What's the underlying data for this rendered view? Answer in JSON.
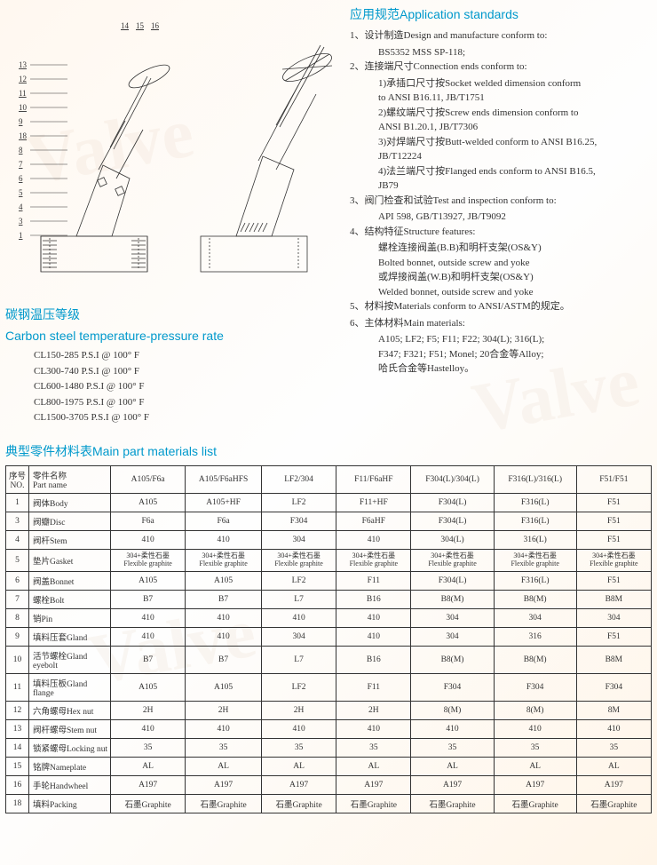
{
  "watermark_text": "Valve",
  "diagram": {
    "callout_numbers_left": [
      "13",
      "12",
      "11",
      "10",
      "9",
      "18",
      "8",
      "7",
      "6",
      "5",
      "4",
      "3",
      "1"
    ],
    "callout_numbers_top": [
      "14",
      "15",
      "16"
    ]
  },
  "standards": {
    "heading": "应用规范Application standards",
    "items": [
      {
        "num": "1、",
        "label": "设计制造Design and manufacture conform to:",
        "subs": [
          "BS5352 MSS SP-118;"
        ]
      },
      {
        "num": "2、",
        "label": "连接端尺寸Connection ends conform to:",
        "subs": [
          "1)承插口尺寸按Socket welded dimension conform",
          "   to ANSI B16.11, JB/T1751",
          "2)螺纹端尺寸按Screw ends dimension conform to",
          "   ANSI B1.20.1, JB/T7306",
          "3)对焊端尺寸按Butt-welded conform to ANSI B16.25,",
          "   JB/T12224",
          "4)法兰端尺寸按Flanged ends conform to ANSI B16.5,",
          "   JB79"
        ]
      },
      {
        "num": "3、",
        "label": "阀门检查和试验Test and inspection conform to:",
        "subs": [
          "API 598, GB/T13927, JB/T9092"
        ]
      },
      {
        "num": "4、",
        "label": "结构特征Structure features:",
        "subs": [
          "螺栓连接阀盖(B.B)和明杆支架(OS&Y)",
          "Bolted bonnet, outside screw and yoke",
          "或焊接阀盖(W.B)和明杆支架(OS&Y)",
          "Welded bonnet, outside screw and yoke"
        ]
      },
      {
        "num": "5、",
        "label": "材料按Materials conform to ANSI/ASTM的规定。",
        "subs": []
      },
      {
        "num": "6、",
        "label": "主体材料Main materials:",
        "subs": [
          "A105; LF2; F5; F11; F22; 304(L); 316(L);",
          "F347; F321; F51; Monel; 20合金等Alloy;",
          "哈氏合金等Hastelloy。"
        ]
      }
    ]
  },
  "temperature": {
    "heading_cn": "碳钢温压等级",
    "heading_en": "Carbon steel temperature-pressure rate",
    "rates": [
      "CL150-285 P.S.I @ 100° F",
      "CL300-740 P.S.I @ 100° F",
      "CL600-1480 P.S.I @ 100° F",
      "CL800-1975 P.S.I @ 100° F",
      "CL1500-3705 P.S.I @ 100° F"
    ]
  },
  "materials_table": {
    "heading": "典型零件材料表Main part materials list",
    "header_no": "序号\nNO.",
    "header_part": "零件名称\nPart name",
    "columns": [
      "A105/F6a",
      "A105/F6aHFS",
      "LF2/304",
      "F11/F6aHF",
      "F304(L)/304(L)",
      "F316(L)/316(L)",
      "F51/F51"
    ],
    "rows": [
      {
        "no": "1",
        "part": "阀体Body",
        "cells": [
          "A105",
          "A105+HF",
          "LF2",
          "F11+HF",
          "F304(L)",
          "F316(L)",
          "F51"
        ]
      },
      {
        "no": "3",
        "part": "阀瓣Disc",
        "cells": [
          "F6a",
          "F6a",
          "F304",
          "F6aHF",
          "F304(L)",
          "F316(L)",
          "F51"
        ]
      },
      {
        "no": "4",
        "part": "阀杆Stem",
        "cells": [
          "410",
          "410",
          "304",
          "410",
          "304(L)",
          "316(L)",
          "F51"
        ]
      },
      {
        "no": "5",
        "part": "垫片Gasket",
        "cells": [
          "304+柔性石墨\nFlexible graphite",
          "304+柔性石墨\nFlexible graphite",
          "304+柔性石墨\nFlexible graphite",
          "304+柔性石墨\nFlexible graphite",
          "304+柔性石墨\nFlexible graphite",
          "304+柔性石墨\nFlexible graphite",
          "304+柔性石墨\nFlexible graphite"
        ]
      },
      {
        "no": "6",
        "part": "阀盖Bonnet",
        "cells": [
          "A105",
          "A105",
          "LF2",
          "F11",
          "F304(L)",
          "F316(L)",
          "F51"
        ]
      },
      {
        "no": "7",
        "part": "螺栓Bolt",
        "cells": [
          "B7",
          "B7",
          "L7",
          "B16",
          "B8(M)",
          "B8(M)",
          "B8M"
        ]
      },
      {
        "no": "8",
        "part": "销Pin",
        "cells": [
          "410",
          "410",
          "410",
          "410",
          "304",
          "304",
          "304"
        ]
      },
      {
        "no": "9",
        "part": "填料压套Gland",
        "cells": [
          "410",
          "410",
          "304",
          "410",
          "304",
          "316",
          "F51"
        ]
      },
      {
        "no": "10",
        "part": "活节螺栓Gland eyebolt",
        "cells": [
          "B7",
          "B7",
          "L7",
          "B16",
          "B8(M)",
          "B8(M)",
          "B8M"
        ]
      },
      {
        "no": "11",
        "part": "填料压板Gland flange",
        "cells": [
          "A105",
          "A105",
          "LF2",
          "F11",
          "F304",
          "F304",
          "F304"
        ]
      },
      {
        "no": "12",
        "part": "六角螺母Hex nut",
        "cells": [
          "2H",
          "2H",
          "2H",
          "2H",
          "8(M)",
          "8(M)",
          "8M"
        ]
      },
      {
        "no": "13",
        "part": "阀杆螺母Stem nut",
        "cells": [
          "410",
          "410",
          "410",
          "410",
          "410",
          "410",
          "410"
        ]
      },
      {
        "no": "14",
        "part": "锁紧螺母Locking nut",
        "cells": [
          "35",
          "35",
          "35",
          "35",
          "35",
          "35",
          "35"
        ]
      },
      {
        "no": "15",
        "part": "铭牌Nameplate",
        "cells": [
          "AL",
          "AL",
          "AL",
          "AL",
          "AL",
          "AL",
          "AL"
        ]
      },
      {
        "no": "16",
        "part": "手轮Handwheel",
        "cells": [
          "A197",
          "A197",
          "A197",
          "A197",
          "A197",
          "A197",
          "A197"
        ]
      },
      {
        "no": "18",
        "part": "填料Packing",
        "cells": [
          "石墨Graphite",
          "石墨Graphite",
          "石墨Graphite",
          "石墨Graphite",
          "石墨Graphite",
          "石墨Graphite",
          "石墨Graphite"
        ]
      }
    ]
  },
  "colors": {
    "heading": "#0099cc",
    "text": "#333333",
    "border": "#333333"
  }
}
